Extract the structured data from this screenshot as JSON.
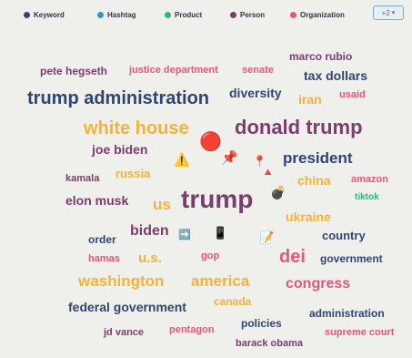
{
  "legend": {
    "items": [
      {
        "label": "Keyword",
        "color": "#2f4673"
      },
      {
        "label": "Hashtag",
        "color": "#3a8ed8"
      },
      {
        "label": "Product",
        "color": "#2db67a"
      },
      {
        "label": "Person",
        "color": "#7a3d6e"
      },
      {
        "label": "Organization",
        "color": "#e5577f"
      }
    ],
    "more_label": "+2"
  },
  "colors": {
    "keyword": "#2f4673",
    "person": "#7a3d6e",
    "organization": "#e5577f",
    "location": "#f0b33c",
    "product": "#2db67a"
  },
  "words": [
    {
      "text": "marco rubio",
      "type": "person"
    },
    {
      "text": "pete hegseth",
      "type": "person"
    },
    {
      "text": "justice department",
      "type": "organization"
    },
    {
      "text": "senate",
      "type": "organization"
    },
    {
      "text": "tax dollars",
      "type": "keyword"
    },
    {
      "text": "trump administration",
      "type": "keyword"
    },
    {
      "text": "diversity",
      "type": "keyword"
    },
    {
      "text": "iran",
      "type": "location"
    },
    {
      "text": "usaid",
      "type": "organization"
    },
    {
      "text": "white house",
      "type": "location"
    },
    {
      "text": "donald trump",
      "type": "person"
    },
    {
      "text": "joe biden",
      "type": "person"
    },
    {
      "text": "president",
      "type": "keyword"
    },
    {
      "text": "kamala",
      "type": "person"
    },
    {
      "text": "russia",
      "type": "location"
    },
    {
      "text": "china",
      "type": "location"
    },
    {
      "text": "amazon",
      "type": "organization"
    },
    {
      "text": "elon musk",
      "type": "person"
    },
    {
      "text": "us",
      "type": "location"
    },
    {
      "text": "trump",
      "type": "person"
    },
    {
      "text": "tiktok",
      "type": "product"
    },
    {
      "text": "ukraine",
      "type": "location"
    },
    {
      "text": "order",
      "type": "keyword"
    },
    {
      "text": "biden",
      "type": "person"
    },
    {
      "text": "country",
      "type": "keyword"
    },
    {
      "text": "hamas",
      "type": "organization"
    },
    {
      "text": "u.s.",
      "type": "location"
    },
    {
      "text": "gop",
      "type": "organization"
    },
    {
      "text": "dei",
      "type": "organization"
    },
    {
      "text": "government",
      "type": "keyword"
    },
    {
      "text": "washington",
      "type": "location"
    },
    {
      "text": "america",
      "type": "location"
    },
    {
      "text": "congress",
      "type": "organization"
    },
    {
      "text": "federal government",
      "type": "keyword"
    },
    {
      "text": "canada",
      "type": "location"
    },
    {
      "text": "administration",
      "type": "keyword"
    },
    {
      "text": "jd vance",
      "type": "person"
    },
    {
      "text": "pentagon",
      "type": "organization"
    },
    {
      "text": "policies",
      "type": "keyword"
    },
    {
      "text": "supreme court",
      "type": "organization"
    },
    {
      "text": "barack obama",
      "type": "person"
    }
  ],
  "emojis": [
    {
      "name": "red-circle-emoji",
      "glyph": "🔴"
    },
    {
      "name": "warning-emoji",
      "glyph": "⚠️"
    },
    {
      "name": "pushpin-emoji",
      "glyph": "📌"
    },
    {
      "name": "round-pushpin-emoji",
      "glyph": "📍"
    },
    {
      "name": "red-triangle-emoji",
      "glyph": "🔺"
    },
    {
      "name": "bomb-emoji",
      "glyph": "💣"
    },
    {
      "name": "right-arrow-emoji",
      "glyph": "➡️"
    },
    {
      "name": "mobile-phone-emoji",
      "glyph": "📱"
    },
    {
      "name": "memo-emoji",
      "glyph": "📝"
    }
  ]
}
